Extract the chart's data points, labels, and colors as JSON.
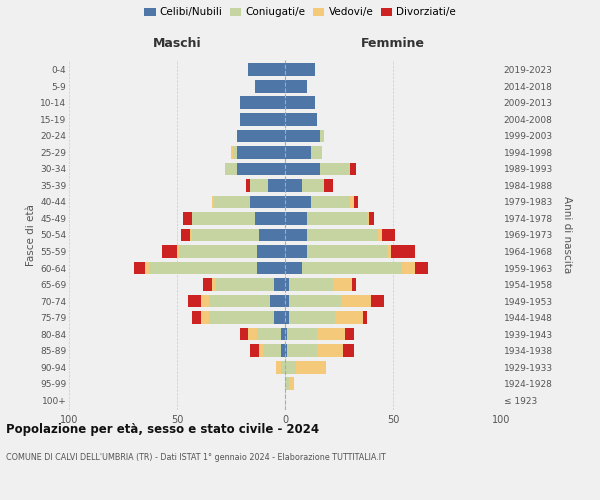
{
  "age_groups": [
    "100+",
    "95-99",
    "90-94",
    "85-89",
    "80-84",
    "75-79",
    "70-74",
    "65-69",
    "60-64",
    "55-59",
    "50-54",
    "45-49",
    "40-44",
    "35-39",
    "30-34",
    "25-29",
    "20-24",
    "15-19",
    "10-14",
    "5-9",
    "0-4"
  ],
  "birth_years": [
    "≤ 1923",
    "1924-1928",
    "1929-1933",
    "1934-1938",
    "1939-1943",
    "1944-1948",
    "1949-1953",
    "1954-1958",
    "1959-1963",
    "1964-1968",
    "1969-1973",
    "1974-1978",
    "1979-1983",
    "1984-1988",
    "1989-1993",
    "1994-1998",
    "1999-2003",
    "2004-2008",
    "2009-2013",
    "2014-2018",
    "2019-2023"
  ],
  "colors": {
    "celibe": "#4e77a8",
    "coniugato": "#c5d4a1",
    "vedovo": "#f5c97a",
    "divorziato": "#cc2222"
  },
  "maschi": {
    "celibe": [
      0,
      0,
      0,
      2,
      2,
      5,
      7,
      5,
      13,
      13,
      12,
      14,
      16,
      8,
      22,
      22,
      22,
      21,
      21,
      14,
      17
    ],
    "coniugato": [
      0,
      0,
      2,
      8,
      11,
      30,
      28,
      27,
      50,
      36,
      31,
      29,
      17,
      8,
      6,
      2,
      0,
      0,
      0,
      0,
      0
    ],
    "vedovo": [
      0,
      0,
      2,
      2,
      4,
      4,
      4,
      2,
      2,
      1,
      1,
      0,
      1,
      0,
      0,
      1,
      0,
      0,
      0,
      0,
      0
    ],
    "divorziato": [
      0,
      0,
      0,
      4,
      4,
      4,
      6,
      4,
      5,
      7,
      4,
      4,
      0,
      2,
      0,
      0,
      0,
      0,
      0,
      0,
      0
    ]
  },
  "femmine": {
    "nubile": [
      0,
      0,
      0,
      1,
      1,
      2,
      2,
      2,
      8,
      10,
      10,
      10,
      12,
      8,
      16,
      12,
      16,
      15,
      14,
      10,
      14
    ],
    "coniugata": [
      0,
      2,
      5,
      14,
      14,
      21,
      24,
      20,
      46,
      37,
      33,
      28,
      18,
      10,
      14,
      5,
      2,
      0,
      0,
      0,
      0
    ],
    "vedova": [
      0,
      2,
      14,
      12,
      13,
      13,
      14,
      9,
      6,
      2,
      2,
      1,
      2,
      0,
      0,
      0,
      0,
      0,
      0,
      0,
      0
    ],
    "divorziata": [
      0,
      0,
      0,
      5,
      4,
      2,
      6,
      2,
      6,
      11,
      6,
      2,
      2,
      4,
      3,
      0,
      0,
      0,
      0,
      0,
      0
    ]
  },
  "xlim": 100,
  "title": "Popolazione per età, sesso e stato civile - 2024",
  "subtitle": "COMUNE DI CALVI DELL'UMBRIA (TR) - Dati ISTAT 1° gennaio 2024 - Elaborazione TUTTITALIA.IT",
  "ylabel_left": "Fasce di età",
  "ylabel_right": "Anni di nascita",
  "xlabel_maschi": "Maschi",
  "xlabel_femmine": "Femmine",
  "legend_labels": [
    "Celibi/Nubili",
    "Coniugati/e",
    "Vedovi/e",
    "Divorziati/e"
  ],
  "background_color": "#f0f0f0"
}
